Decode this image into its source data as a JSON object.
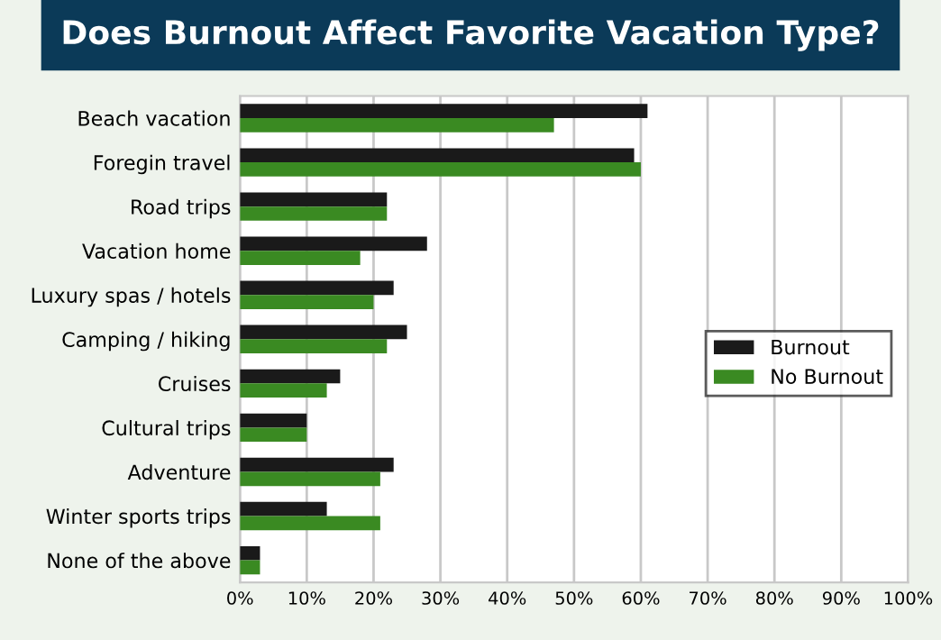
{
  "chart_data": {
    "type": "bar",
    "orientation": "horizontal",
    "title": "Does Burnout Affect Favorite Vacation Type?",
    "categories": [
      "Beach vacation",
      "Foregin travel",
      "Road trips",
      "Vacation home",
      "Luxury spas / hotels",
      "Camping / hiking",
      "Cruises",
      "Cultural trips",
      "Adventure",
      "Winter sports trips",
      "None of the above"
    ],
    "series": [
      {
        "name": "Burnout",
        "color": "#1a1a1a",
        "values": [
          61,
          59,
          22,
          28,
          23,
          25,
          15,
          10,
          23,
          13,
          3
        ]
      },
      {
        "name": "No Burnout",
        "color": "#3a8a22",
        "values": [
          47,
          60,
          22,
          18,
          20,
          22,
          13,
          10,
          21,
          21,
          3
        ]
      }
    ],
    "xlim": [
      0,
      100
    ],
    "xticks": [
      {
        "value": 0,
        "label": "0%"
      },
      {
        "value": 10,
        "label": "10%"
      },
      {
        "value": 20,
        "label": "20%"
      },
      {
        "value": 30,
        "label": "30%"
      },
      {
        "value": 40,
        "label": "40%"
      },
      {
        "value": 50,
        "label": "50%"
      },
      {
        "value": 60,
        "label": "60%"
      },
      {
        "value": 70,
        "label": "70%"
      },
      {
        "value": 80,
        "label": "80%"
      },
      {
        "value": 90,
        "label": "90%"
      },
      {
        "value": 100,
        "label": "100%"
      }
    ],
    "grid": "x",
    "legend": "right"
  }
}
